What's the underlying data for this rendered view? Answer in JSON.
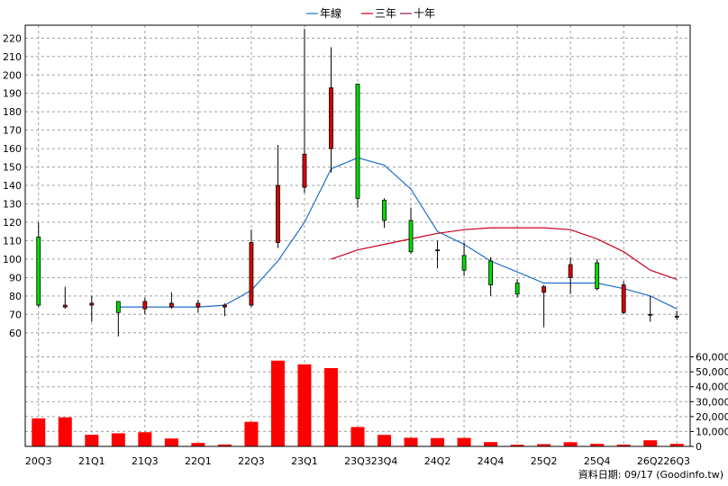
{
  "chart_data": {
    "type": "candlestick",
    "periods": [
      "20Q3",
      "20Q4",
      "21Q1",
      "21Q2",
      "21Q3",
      "21Q4",
      "22Q1",
      "22Q2",
      "22Q3",
      "22Q4",
      "23Q1",
      "23Q2",
      "23Q3",
      "23Q4",
      "24Q1",
      "24Q2",
      "24Q3",
      "24Q4",
      "25Q1",
      "25Q2",
      "25Q3",
      "25Q4",
      "26Q1",
      "26Q2",
      "26Q3"
    ],
    "x_tick_labels": [
      "20Q3",
      "21Q1",
      "21Q3",
      "22Q1",
      "22Q3",
      "23Q1",
      "23Q3",
      "23Q4",
      "24Q2",
      "24Q4",
      "25Q2",
      "25Q4",
      "26Q2",
      "26Q3"
    ],
    "price_axis": {
      "ylim": [
        55,
        227
      ],
      "ticks": [
        60,
        70,
        80,
        90,
        100,
        110,
        120,
        130,
        140,
        150,
        160,
        170,
        180,
        190,
        200,
        210,
        220
      ]
    },
    "volume_axis": {
      "ylim": [
        0,
        70000
      ],
      "ticks": [
        "0",
        "10,000",
        "20,000",
        "30,000",
        "40,000",
        "50,000",
        "60,000"
      ],
      "tick_values": [
        0,
        10000,
        20000,
        30000,
        40000,
        50000,
        60000
      ]
    },
    "ohlc": [
      {
        "open": 75,
        "high": 120,
        "low": 74,
        "close": 112
      },
      {
        "open": 75,
        "high": 85,
        "low": 73,
        "close": 74
      },
      {
        "open": 76,
        "high": 80,
        "low": 66,
        "close": 75
      },
      {
        "open": 71,
        "high": 77,
        "low": 58,
        "close": 77
      },
      {
        "open": 77,
        "high": 79,
        "low": 70,
        "close": 73
      },
      {
        "open": 76,
        "high": 82,
        "low": 73,
        "close": 74
      },
      {
        "open": 76,
        "high": 78,
        "low": 71,
        "close": 74
      },
      {
        "open": 75,
        "high": 76,
        "low": 69,
        "close": 74
      },
      {
        "open": 109,
        "high": 116,
        "low": 74,
        "close": 75
      },
      {
        "open": 140,
        "high": 162,
        "low": 106,
        "close": 109
      },
      {
        "open": 157,
        "high": 225,
        "low": 136,
        "close": 139
      },
      {
        "open": 193,
        "high": 215,
        "low": 147,
        "close": 160
      },
      {
        "open": 133,
        "high": 195,
        "low": 128,
        "close": 195
      },
      {
        "open": 121,
        "high": 133,
        "low": 117,
        "close": 132
      },
      {
        "open": 104,
        "high": 128,
        "low": 103,
        "close": 121
      },
      {
        "open": 105,
        "high": 110,
        "low": 95,
        "close": 105
      },
      {
        "open": 94,
        "high": 109,
        "low": 91,
        "close": 102
      },
      {
        "open": 86,
        "high": 101,
        "low": 80,
        "close": 99
      },
      {
        "open": 81,
        "high": 89,
        "low": 79,
        "close": 87
      },
      {
        "open": 85,
        "high": 86,
        "low": 63,
        "close": 82
      },
      {
        "open": 97,
        "high": 101,
        "low": 81,
        "close": 90
      },
      {
        "open": 84,
        "high": 100,
        "low": 83,
        "close": 98
      },
      {
        "open": 86,
        "high": 88,
        "low": 70,
        "close": 71
      },
      {
        "open": 70,
        "high": 80,
        "low": 66,
        "close": 70
      },
      {
        "open": 69,
        "high": 72,
        "low": 67,
        "close": 69
      }
    ],
    "volume": [
      18800,
      19500,
      7800,
      8800,
      9500,
      5300,
      2300,
      1300,
      16500,
      57500,
      55000,
      52500,
      13000,
      7700,
      5800,
      5600,
      5700,
      2900,
      1100,
      1500,
      2800,
      1700,
      1200,
      4100,
      1700
    ],
    "series": [
      {
        "name": "年線",
        "color": "#1e6fc8",
        "start_index": 3,
        "values": [
          74,
          74,
          74,
          74,
          75,
          83,
          99,
          120,
          149,
          155,
          151,
          138,
          115,
          108,
          99,
          93,
          87,
          87,
          87,
          84,
          80,
          73
        ]
      },
      {
        "name": "三年",
        "color": "#c8001e",
        "start_index": 11,
        "values": [
          100,
          105,
          108,
          111,
          114,
          116,
          117,
          117,
          117,
          116,
          111,
          104,
          94,
          89
        ]
      },
      {
        "name": "十年",
        "color": "#8b1a5a",
        "values": []
      }
    ],
    "up_color": "#00dd00",
    "down_color": "#dd0000",
    "volume_color": "#ff0000",
    "grid": true,
    "legend_position": "top-center",
    "footer_text": "資料日期: 09/17  (Goodinfo.tw)"
  }
}
